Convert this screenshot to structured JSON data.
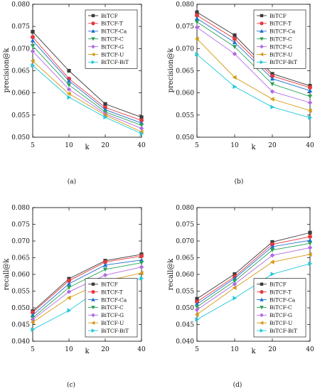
{
  "series_styles": [
    {
      "name": "BiTCF",
      "color": "#3a3a3a",
      "marker": "square"
    },
    {
      "name": "BiTCF-T",
      "color": "#e8383d",
      "marker": "circle"
    },
    {
      "name": "BiTCF-Ca",
      "color": "#1f6fd1",
      "marker": "triangle-up"
    },
    {
      "name": "BiTCF-C",
      "color": "#2aa25a",
      "marker": "triangle-down"
    },
    {
      "name": "BiTCF-G",
      "color": "#b36ae2",
      "marker": "diamond"
    },
    {
      "name": "BiTCF-U",
      "color": "#d49a11",
      "marker": "triangle-left"
    },
    {
      "name": "BiTCF-BiT",
      "color": "#22c8d8",
      "marker": "triangle-right"
    }
  ],
  "chart_data": [
    {
      "type": "line",
      "caption": "(a)",
      "xlabel": "k",
      "ylabel": "precision@k",
      "categories": [
        "5",
        "10",
        "20",
        "40"
      ],
      "ylim": [
        0.05,
        0.08
      ],
      "yticks": [
        "0.050",
        "0.055",
        "0.060",
        "0.065",
        "0.070",
        "0.075",
        "0.080"
      ],
      "legend": "top-right",
      "series": [
        {
          "name": "BiTCF",
          "values": [
            0.0738,
            0.065,
            0.0575,
            0.0545
          ]
        },
        {
          "name": "BiTCF-T",
          "values": [
            0.0726,
            0.0632,
            0.0567,
            0.0538
          ]
        },
        {
          "name": "BiTCF-Ca",
          "values": [
            0.0718,
            0.0627,
            0.0562,
            0.0532
          ]
        },
        {
          "name": "BiTCF-C",
          "values": [
            0.0706,
            0.0618,
            0.0557,
            0.0527
          ]
        },
        {
          "name": "BiTCF-G",
          "values": [
            0.0694,
            0.0608,
            0.0553,
            0.052
          ]
        },
        {
          "name": "BiTCF-U",
          "values": [
            0.0672,
            0.0598,
            0.055,
            0.0512
          ]
        },
        {
          "name": "BiTCF-BiT",
          "values": [
            0.0662,
            0.059,
            0.0545,
            0.0508
          ]
        }
      ]
    },
    {
      "type": "line",
      "caption": "(b)",
      "xlabel": "k",
      "ylabel": "precision@k",
      "categories": [
        "5",
        "10",
        "20",
        "40"
      ],
      "ylim": [
        0.05,
        0.08
      ],
      "yticks": [
        "0.050",
        "0.055",
        "0.060",
        "0.065",
        "0.070",
        "0.075",
        "0.080"
      ],
      "legend": "top-right",
      "series": [
        {
          "name": "BiTCF",
          "values": [
            0.0782,
            0.073,
            0.0643,
            0.0616
          ]
        },
        {
          "name": "BiTCF-T",
          "values": [
            0.0775,
            0.0722,
            0.0638,
            0.0612
          ]
        },
        {
          "name": "BiTCF-Ca",
          "values": [
            0.0768,
            0.0714,
            0.0632,
            0.0605
          ]
        },
        {
          "name": "BiTCF-C",
          "values": [
            0.076,
            0.0704,
            0.062,
            0.0592
          ]
        },
        {
          "name": "BiTCF-G",
          "values": [
            0.0748,
            0.0688,
            0.0603,
            0.0578
          ]
        },
        {
          "name": "BiTCF-U",
          "values": [
            0.0722,
            0.0635,
            0.0586,
            0.056
          ]
        },
        {
          "name": "BiTCF-BiT",
          "values": [
            0.0687,
            0.0614,
            0.0568,
            0.0544
          ]
        }
      ]
    },
    {
      "type": "line",
      "caption": "(c)",
      "xlabel": "k",
      "ylabel": "recall@k",
      "categories": [
        "5",
        "10",
        "20",
        "40"
      ],
      "ylim": [
        0.04,
        0.08
      ],
      "yticks": [
        "0.040",
        "0.045",
        "0.050",
        "0.055",
        "0.060",
        "0.065",
        "0.070",
        "0.075",
        "0.080"
      ],
      "legend": "bottom-right",
      "series": [
        {
          "name": "BiTCF",
          "values": [
            0.049,
            0.0587,
            0.0641,
            0.066
          ]
        },
        {
          "name": "BiTCF-T",
          "values": [
            0.0486,
            0.0581,
            0.0637,
            0.0655
          ]
        },
        {
          "name": "BiTCF-Ca",
          "values": [
            0.0478,
            0.0572,
            0.0628,
            0.0643
          ]
        },
        {
          "name": "BiTCF-C",
          "values": [
            0.047,
            0.0561,
            0.0615,
            0.0635
          ]
        },
        {
          "name": "BiTCF-G",
          "values": [
            0.0465,
            0.0548,
            0.0598,
            0.0622
          ]
        },
        {
          "name": "BiTCF-U",
          "values": [
            0.0457,
            0.053,
            0.058,
            0.0604
          ]
        },
        {
          "name": "BiTCF-BiT",
          "values": [
            0.0435,
            0.0492,
            0.0567,
            0.0588
          ]
        }
      ]
    },
    {
      "type": "line",
      "caption": "(d)",
      "xlabel": "k",
      "ylabel": "recall@k",
      "categories": [
        "5",
        "10",
        "20",
        "40"
      ],
      "ylim": [
        0.04,
        0.08
      ],
      "yticks": [
        "0.040",
        "0.045",
        "0.050",
        "0.055",
        "0.060",
        "0.065",
        "0.070",
        "0.075",
        "0.080"
      ],
      "legend": "bottom-right",
      "series": [
        {
          "name": "BiTCF",
          "values": [
            0.0527,
            0.0601,
            0.0697,
            0.0725
          ]
        },
        {
          "name": "BiTCF-T",
          "values": [
            0.0518,
            0.0593,
            0.069,
            0.0713
          ]
        },
        {
          "name": "BiTCF-Ca",
          "values": [
            0.0511,
            0.0588,
            0.0683,
            0.0702
          ]
        },
        {
          "name": "BiTCF-C",
          "values": [
            0.0503,
            0.058,
            0.0673,
            0.0693
          ]
        },
        {
          "name": "BiTCF-G",
          "values": [
            0.0494,
            0.0571,
            0.0657,
            0.068
          ]
        },
        {
          "name": "BiTCF-U",
          "values": [
            0.048,
            0.056,
            0.0637,
            0.066
          ]
        },
        {
          "name": "BiTCF-BiT",
          "values": [
            0.0465,
            0.0529,
            0.0601,
            0.0632
          ]
        }
      ]
    }
  ]
}
